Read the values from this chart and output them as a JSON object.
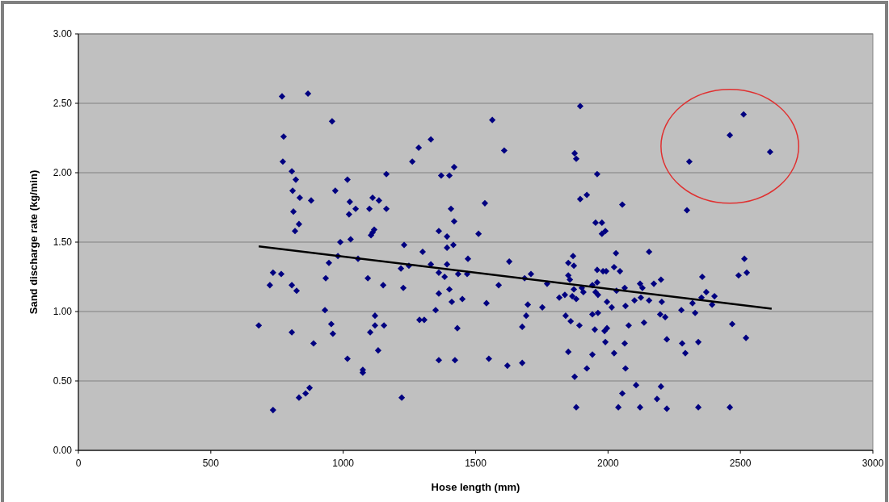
{
  "chart_data": {
    "type": "scatter",
    "xlabel": "Hose length (mm)",
    "ylabel": "Sand discharge rate (kg/min)",
    "xlim": [
      0,
      3000
    ],
    "xticks": [
      0,
      500,
      1000,
      1500,
      2000,
      2500,
      3000
    ],
    "ylim": [
      0,
      3
    ],
    "yticks": [
      {
        "value": 0,
        "label": "0.00"
      },
      {
        "value": 0.5,
        "label": "0.50"
      },
      {
        "value": 1,
        "label": "1.00"
      },
      {
        "value": 1.5,
        "label": "1.50"
      },
      {
        "value": 2,
        "label": "2.00"
      },
      {
        "value": 2.5,
        "label": "2.50"
      },
      {
        "value": 3,
        "label": "3.00"
      }
    ],
    "grid": "y",
    "series": [
      {
        "color": "#000080",
        "marker": "diamond",
        "x": [
          681,
          735,
          723,
          735,
          766,
          769,
          775,
          772,
          806,
          809,
          812,
          818,
          821,
          806,
          824,
          806,
          833,
          867,
          879,
          873,
          888,
          833,
          836,
          858,
          931,
          934,
          946,
          955,
          958,
          961,
          970,
          980,
          989,
          1016,
          1016,
          1022,
          1028,
          1025,
          1047,
          1056,
          1074,
          1074,
          1093,
          1099,
          1102,
          1105,
          1111,
          1117,
          1111,
          1120,
          1120,
          1132,
          1135,
          1151,
          1154,
          1163,
          1163,
          1221,
          1218,
          1230,
          1227,
          1248,
          1261,
          1285,
          1288,
          1300,
          1331,
          1370,
          1401,
          1361,
          1306,
          1349,
          1361,
          1331,
          1361,
          1383,
          1361,
          1392,
          1392,
          1401,
          1392,
          1895,
          1563,
          1608,
          1874,
          1880,
          1959,
          1419,
          1895,
          1920,
          2054,
          1535,
          1407,
          1419,
          1511,
          1953,
          1977,
          1977,
          1990,
          1416,
          1471,
          1627,
          1868,
          1850,
          1871,
          2030,
          2023,
          2045,
          1959,
          1981,
          1993,
          1434,
          1468,
          1709,
          1685,
          1587,
          1770,
          1850,
          1856,
          1450,
          1541,
          1697,
          1752,
          1691,
          1676,
          1816,
          1837,
          1865,
          1880,
          1871,
          1901,
          1907,
          1941,
          1959,
          1953,
          1962,
          1996,
          2032,
          2063,
          2066,
          2014,
          2100,
          2121,
          1410,
          1431,
          1840,
          1859,
          1892,
          1941,
          1962,
          1950,
          1987,
          1996,
          2078,
          2136,
          1990,
          2063,
          2023,
          1850,
          1941,
          1422,
          1550,
          1620,
          1676,
          1920,
          2066,
          1874,
          2106,
          2054,
          1880,
          2039,
          2121,
          2512,
          2460,
          2612,
          2307,
          2298,
          2155,
          2515,
          2524,
          2493,
          2356,
          2371,
          2402,
          2393,
          2353,
          2319,
          2277,
          2329,
          2200,
          2173,
          2130,
          2124,
          2155,
          2203,
          2197,
          2216,
          2469,
          2521,
          2222,
          2280,
          2292,
          2341,
          2200,
          2185,
          2222,
          2341,
          2460
        ],
        "values": [
          0.9,
          0.29,
          1.19,
          1.28,
          1.27,
          2.55,
          2.26,
          2.08,
          2.01,
          1.87,
          1.72,
          1.58,
          1.95,
          1.19,
          1.15,
          0.85,
          0.38,
          2.57,
          1.8,
          0.45,
          0.77,
          1.63,
          1.82,
          0.41,
          1.01,
          1.24,
          1.35,
          0.91,
          2.37,
          0.84,
          1.87,
          1.4,
          1.5,
          0.66,
          1.95,
          1.7,
          1.52,
          1.79,
          1.74,
          1.38,
          0.58,
          0.56,
          1.24,
          1.74,
          0.85,
          1.55,
          1.57,
          1.59,
          1.82,
          0.97,
          0.9,
          0.72,
          1.8,
          1.19,
          0.9,
          1.74,
          1.99,
          0.38,
          1.31,
          1.48,
          1.17,
          1.33,
          2.08,
          2.18,
          0.94,
          1.43,
          2.24,
          1.98,
          1.98,
          0.65,
          0.94,
          1.01,
          1.13,
          1.34,
          1.28,
          1.25,
          1.58,
          1.54,
          1.46,
          1.16,
          1.34,
          2.48,
          2.38,
          2.16,
          2.14,
          2.1,
          1.99,
          2.04,
          1.81,
          1.84,
          1.77,
          1.78,
          1.74,
          1.65,
          1.56,
          1.64,
          1.64,
          1.56,
          1.58,
          1.48,
          1.38,
          1.36,
          1.4,
          1.35,
          1.33,
          1.42,
          1.32,
          1.29,
          1.3,
          1.29,
          1.29,
          1.27,
          1.27,
          1.27,
          1.24,
          1.19,
          1.2,
          1.26,
          1.23,
          1.09,
          1.06,
          1.05,
          1.03,
          0.97,
          0.89,
          1.1,
          1.12,
          1.11,
          1.09,
          1.16,
          1.17,
          1.14,
          1.19,
          1.21,
          1.14,
          1.12,
          1.07,
          1.15,
          1.17,
          1.04,
          1.03,
          1.08,
          1.2,
          1.07,
          0.88,
          0.97,
          0.93,
          0.9,
          0.98,
          0.99,
          0.87,
          0.86,
          0.88,
          0.9,
          0.92,
          0.78,
          0.77,
          0.7,
          0.71,
          0.69,
          0.65,
          0.66,
          0.61,
          0.63,
          0.59,
          0.59,
          0.53,
          0.47,
          0.41,
          0.31,
          0.31,
          0.31,
          2.42,
          2.27,
          2.15,
          2.08,
          1.73,
          1.43,
          1.38,
          1.28,
          1.26,
          1.25,
          1.14,
          1.11,
          1.05,
          1.1,
          1.06,
          1.01,
          0.99,
          1.23,
          1.2,
          1.17,
          1.1,
          1.08,
          1.07,
          0.98,
          0.96,
          0.91,
          0.81,
          0.8,
          0.77,
          0.7,
          0.78,
          0.46,
          0.37,
          0.3,
          0.31,
          0.31
        ]
      },
      {
        "type": "line",
        "color": "#000000",
        "marker": "none",
        "line_style": "solid",
        "x": [
          681,
          2618
        ],
        "values": [
          1.47,
          1.02
        ]
      }
    ]
  }
}
